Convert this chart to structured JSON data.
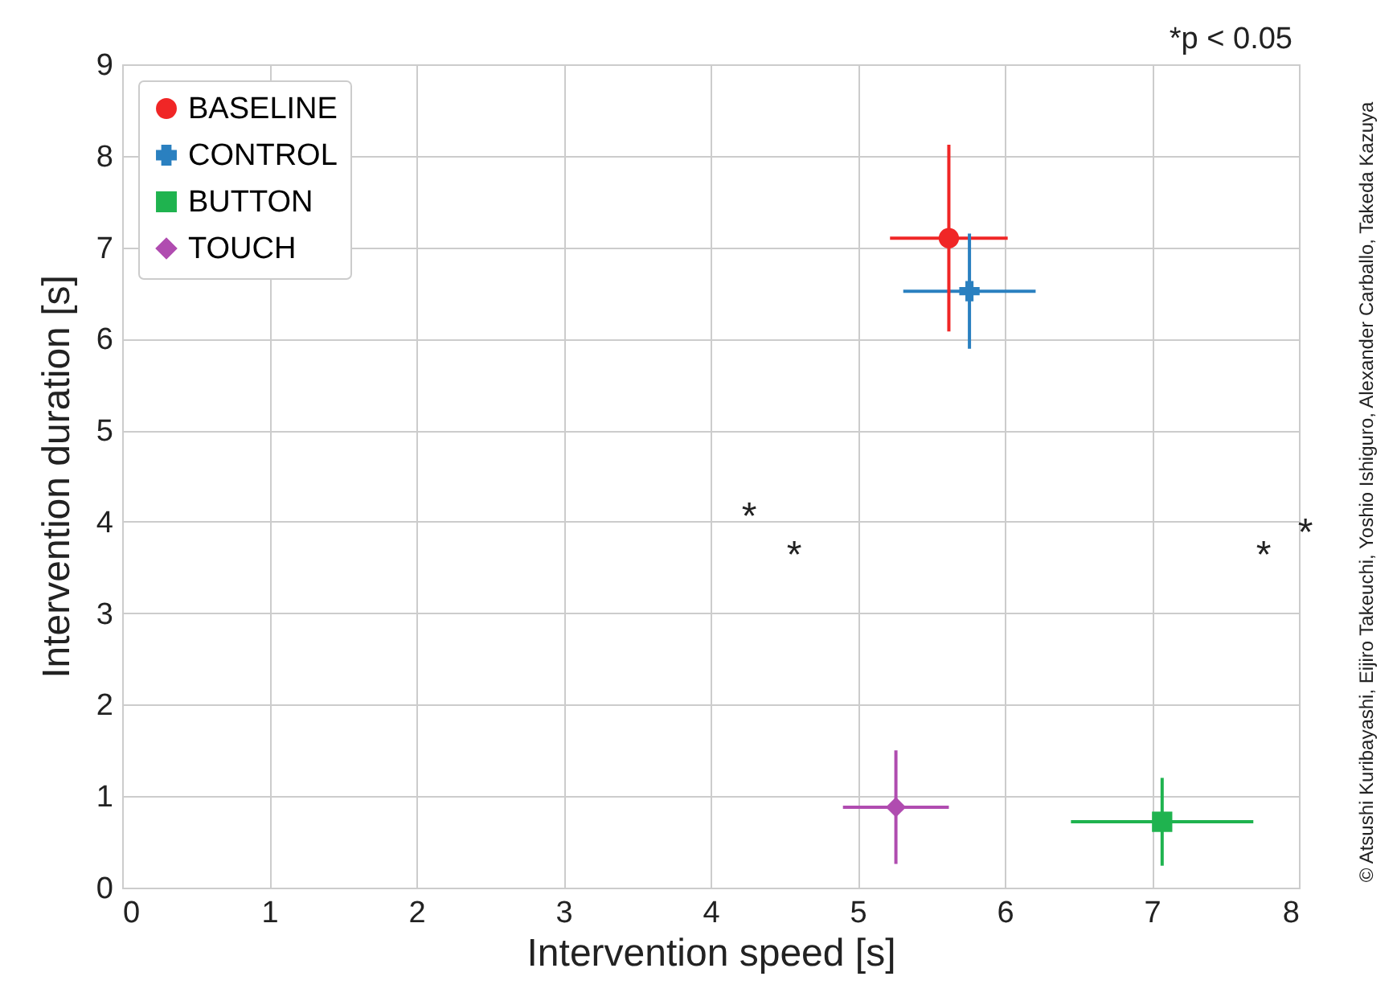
{
  "chart_data": {
    "type": "scatter",
    "xlabel": "Intervention speed [s]",
    "ylabel": "Intervention duration [s]",
    "xlim": [
      0,
      8
    ],
    "xticks": [
      0,
      1,
      2,
      3,
      4,
      5,
      6,
      7,
      8
    ],
    "ylim": [
      0,
      9
    ],
    "yticks": [
      0,
      1,
      2,
      3,
      4,
      5,
      6,
      7,
      8,
      9
    ],
    "grid": true,
    "legend": "top left",
    "series": [
      {
        "name": "BASELINE",
        "color": "#f02626",
        "marker": "circle",
        "x": [
          5.62
        ],
        "values": [
          7.1
        ],
        "errors": [
          1.02
        ],
        "xerrors": [
          0.4
        ]
      },
      {
        "name": "CONTROL",
        "color": "#2a80c0",
        "marker": "cross",
        "x": [
          5.76
        ],
        "values": [
          6.52
        ],
        "errors": [
          0.63
        ],
        "xerrors": [
          0.45
        ]
      },
      {
        "name": "BUTTON",
        "color": "#1fb34f",
        "marker": "square",
        "x": [
          7.07
        ],
        "values": [
          0.72
        ],
        "errors": [
          0.48
        ],
        "xerrors": [
          0.62
        ]
      },
      {
        "name": "TOUCH",
        "color": "#b04cb0",
        "marker": "diamond",
        "x": [
          5.26
        ],
        "values": [
          0.88
        ],
        "errors": [
          0.62
        ],
        "xerrors": [
          0.36
        ]
      }
    ],
    "annotations": [
      "*p < 0.05",
      "*",
      "*",
      "*",
      "*",
      "© Atsushi Kuribayashi, Eijiro Takeuchi, Yoshio Ishiguro, Alexander Carballo, Takeda Kazuya"
    ]
  }
}
